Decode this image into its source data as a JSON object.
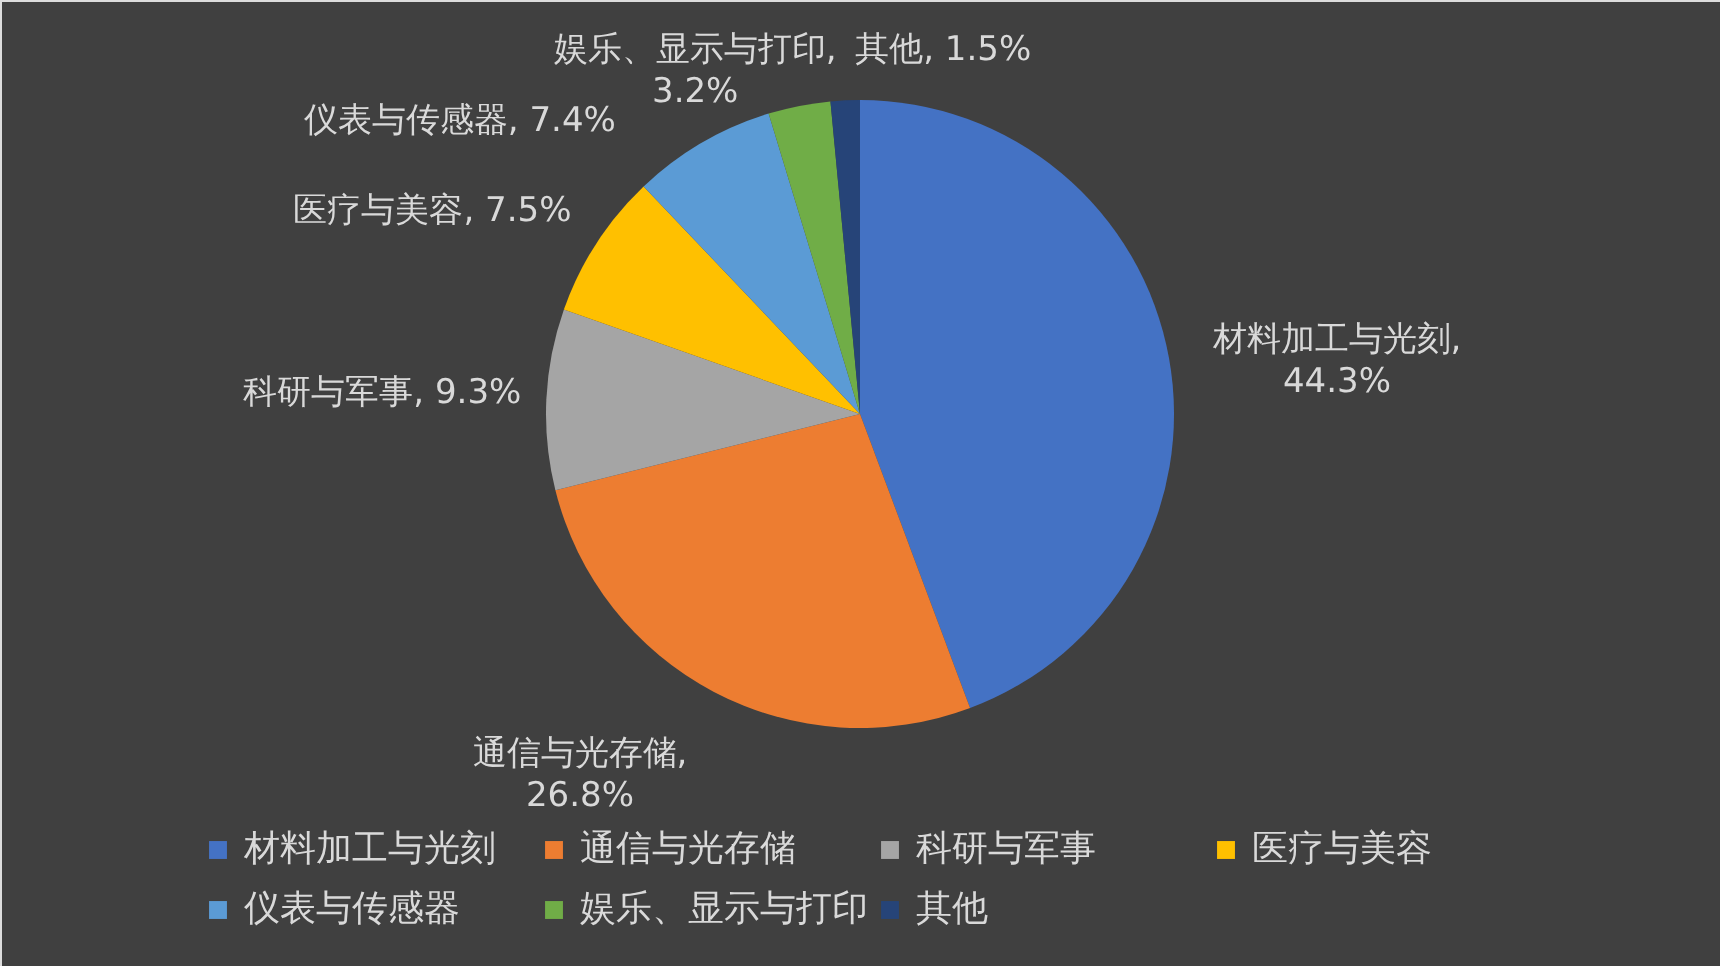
{
  "chart_data": {
    "type": "pie",
    "categories": [
      "材料加工与光刻",
      "通信与光存储",
      "科研与军事",
      "医疗与美容",
      "仪表与传感器",
      "娱乐、显示与打印",
      "其他"
    ],
    "values": [
      44.3,
      26.8,
      9.3,
      7.5,
      7.4,
      3.2,
      1.5
    ],
    "colors": [
      "#4472c4",
      "#ed7d31",
      "#a5a5a5",
      "#ffc000",
      "#5b9bd5",
      "#70ad47",
      "#264478"
    ],
    "value_labels": [
      "材料加工与光刻, 44.3%",
      "通信与光存储, 26.8%",
      "科研与军事, 9.3%",
      "医疗与美容, 7.5%",
      "仪表与传感器, 7.4%",
      "娱乐、显示与打印, 3.2%",
      "其他, 1.5%"
    ],
    "legend": "bottom"
  }
}
